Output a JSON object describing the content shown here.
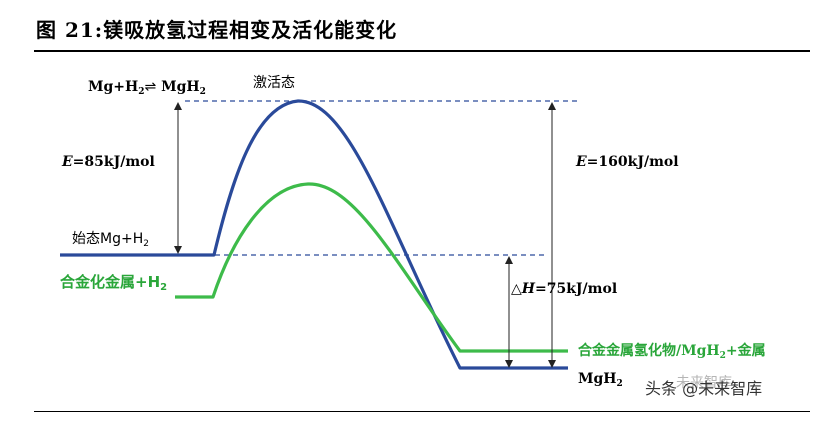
{
  "figure": {
    "title": "图  21:镁吸放氢过程相变及活化能变化"
  },
  "labels": {
    "reaction_main": "Mg+H",
    "reaction_sub1": "2",
    "reaction_arrow": "⇌",
    "reaction_mg": " MgH",
    "reaction_sub2": "2",
    "activated_state": "激活态",
    "e_left_italic": "E",
    "e_left_value": "=85kJ/mol",
    "e_right_italic": "E",
    "e_right_value": "=160kJ/mol",
    "initial_state": "始态Mg+H",
    "initial_state_sub": "2",
    "alloy_metal": "合金化金属+H",
    "alloy_metal_sub": "2",
    "delta_h_symbol": "△",
    "delta_h_italic": "H",
    "delta_h_value": "=75kJ/mol",
    "alloy_hydride": "合金金属氢化物/MgH",
    "alloy_hydride_sub": "2",
    "alloy_hydride_tail": "+金属",
    "product_mgh2": "MgH",
    "product_mgh2_sub": "2"
  },
  "watermark": {
    "text": "头条 @未来智库",
    "faint_text": "未来智库"
  },
  "colors": {
    "blue_curve": "#2a4a9a",
    "green_curve": "#3dbb4a",
    "green_text": "#2aa63a",
    "dashed_line": "#2a4a9a",
    "arrow": "#222222"
  }
}
